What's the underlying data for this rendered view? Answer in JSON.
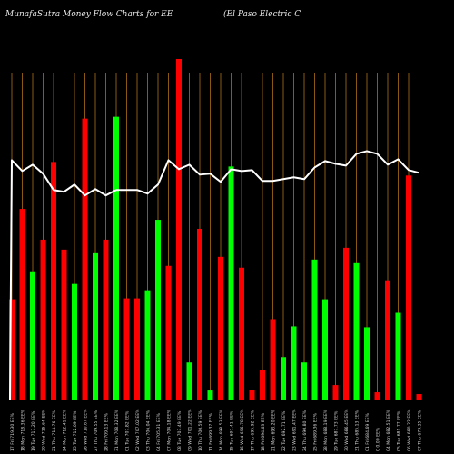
{
  "chart_data": {
    "type": "bar",
    "title_left": "MunafaSutra  Money Flow  Charts for EE",
    "title_right": "(El Paso  Electric C",
    "colors": {
      "background": "#000000",
      "gridline": "#8a5a12",
      "up": "#00ff00",
      "down": "#ff0000",
      "line": "#ffffff",
      "label": "#d8d8d8"
    },
    "categories": [
      "17 Fri 719.30 EE%",
      "18 Mon 718.36 EE%",
      "19 Tue 717.20 EE%",
      "20 Wed 715.64 EE%",
      "21 Thu 714.76 EE%",
      "24 Mon 712.41 EE%",
      "25 Tue 712.09 EE%",
      "26 Wed 710.67 EE%",
      "27 Thu 709.55 EE%",
      "28 Fri 709.13 EE%",
      "31 Mon 708.32 EE%",
      "01 Tue 707.82 EE%",
      "02 Wed 707.02 EE%",
      "03 Thu 706.04 EE%",
      "04 Fri 705.31 EE%",
      "07 Mon 704.18 EE%",
      "08 Tue 703.49 EE%",
      "09 Wed 701.22 EE%",
      "10 Thu 700.59 EE%",
      "11 Fri 699.37 EE%",
      "14 Mon 698.53 EE%",
      "15 Tue 697.41 EE%",
      "16 Wed 696.78 EE%",
      "17 Thu 695.92 EE%",
      "18 Fri 694.63 EE%",
      "21 Mon 693.20 EE%",
      "22 Tue 692.71 EE%",
      "23 Wed 691.47 EE%",
      "24 Thu 690.80 EE%",
      "25 Fri 689.36 EE%",
      "28 Mon 688.19 EE%",
      "29 Tue 687.73 EE%",
      "30 Wed 686.45 EE%",
      "31 Thu 685.13 EE%",
      "01 Fri 684.69 EE%",
      "0 0.00 EE%",
      "04 Mon 682.51 EE%",
      "05 Tue 681.77 EE%",
      "06 Wed 680.22 EE%",
      "07 Thu 679.35 EE%"
    ],
    "bars": [
      {
        "value": 111,
        "dir": "down"
      },
      {
        "value": 211,
        "dir": "down"
      },
      {
        "value": 141,
        "dir": "up"
      },
      {
        "value": 177,
        "dir": "down"
      },
      {
        "value": 263,
        "dir": "down"
      },
      {
        "value": 166,
        "dir": "down"
      },
      {
        "value": 128,
        "dir": "up"
      },
      {
        "value": 311,
        "dir": "down"
      },
      {
        "value": 162,
        "dir": "up"
      },
      {
        "value": 177,
        "dir": "down"
      },
      {
        "value": 313,
        "dir": "up"
      },
      {
        "value": 112,
        "dir": "down"
      },
      {
        "value": 112,
        "dir": "down"
      },
      {
        "value": 121,
        "dir": "up"
      },
      {
        "value": 199,
        "dir": "up"
      },
      {
        "value": 148,
        "dir": "down"
      },
      {
        "value": 377,
        "dir": "down"
      },
      {
        "value": 41,
        "dir": "up"
      },
      {
        "value": 189,
        "dir": "down"
      },
      {
        "value": 10,
        "dir": "up"
      },
      {
        "value": 158,
        "dir": "down"
      },
      {
        "value": 258,
        "dir": "up"
      },
      {
        "value": 146,
        "dir": "down"
      },
      {
        "value": 11,
        "dir": "down"
      },
      {
        "value": 33,
        "dir": "down"
      },
      {
        "value": 89,
        "dir": "down"
      },
      {
        "value": 47,
        "dir": "up"
      },
      {
        "value": 81,
        "dir": "up"
      },
      {
        "value": 41,
        "dir": "up"
      },
      {
        "value": 155,
        "dir": "up"
      },
      {
        "value": 111,
        "dir": "up"
      },
      {
        "value": 16,
        "dir": "down"
      },
      {
        "value": 168,
        "dir": "down"
      },
      {
        "value": 151,
        "dir": "up"
      },
      {
        "value": 80,
        "dir": "up"
      },
      {
        "value": 8,
        "dir": "down"
      },
      {
        "value": 132,
        "dir": "down"
      },
      {
        "value": 96,
        "dir": "up"
      },
      {
        "value": 248,
        "dir": "down"
      },
      {
        "value": 6,
        "dir": "down"
      }
    ],
    "line": [
      265,
      253,
      260,
      250,
      232,
      230,
      238,
      226,
      233,
      226,
      232,
      232,
      232,
      228,
      238,
      265,
      255,
      260,
      249,
      250,
      241,
      255,
      253,
      254,
      242,
      242,
      244,
      246,
      244,
      257,
      264,
      261,
      259,
      272,
      275,
      272,
      260,
      266,
      254,
      251
    ],
    "line_start": 0,
    "ylim": [
      0,
      380
    ],
    "grid": "vertical",
    "legend": "none"
  }
}
